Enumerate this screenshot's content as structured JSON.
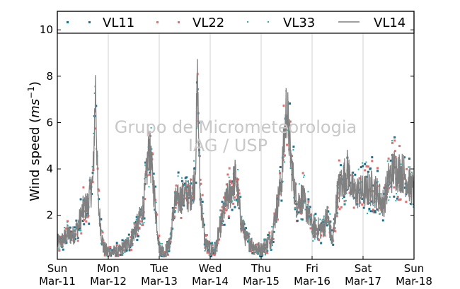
{
  "chart_data": {
    "type": "line",
    "ylabel_main": "Wind speed (",
    "ylabel_unit_base": "ms",
    "ylabel_unit_exp": "−1",
    "ylabel_close": ")",
    "ylim": [
      0.1,
      10.8
    ],
    "yticks": [
      2,
      4,
      6,
      8,
      10
    ],
    "xlim": [
      0,
      7
    ],
    "xtick_labels": [
      {
        "day": "Sun",
        "date": "Mar-11"
      },
      {
        "day": "Mon",
        "date": "Mar-12"
      },
      {
        "day": "Tue",
        "date": "Mar-13"
      },
      {
        "day": "Wed",
        "date": "Mar-14"
      },
      {
        "day": "Thu",
        "date": "Mar-15"
      },
      {
        "day": "Fri",
        "date": "Mar-16"
      },
      {
        "day": "Sat",
        "date": "Mar-17"
      },
      {
        "day": "Sun",
        "date": "Mar-18"
      }
    ],
    "grid": "vertical",
    "legend_position": "top",
    "watermark": [
      "Grupo de Micrometeorologia",
      "IAG / USP"
    ],
    "series": [
      {
        "name": "VL11",
        "style": "dots",
        "color": "#1f6f8b"
      },
      {
        "name": "VL22",
        "style": "dots",
        "color": "#e07070"
      },
      {
        "name": "VL33",
        "style": "dots",
        "color": "#20b2aa"
      },
      {
        "name": "VL14",
        "style": "line",
        "color": "#808080"
      }
    ],
    "profile_days": [
      0,
      0.1,
      0.2,
      0.3,
      0.4,
      0.5,
      0.6,
      0.7,
      0.75,
      0.8,
      0.9,
      1.0,
      1.2,
      1.4,
      1.6,
      1.7,
      1.8,
      1.9,
      2.0,
      2.1,
      2.2,
      2.3,
      2.4,
      2.5,
      2.6,
      2.7,
      2.75,
      2.8,
      2.9,
      3.0,
      3.1,
      3.2,
      3.3,
      3.4,
      3.5,
      3.6,
      3.7,
      3.8,
      3.9,
      4.0,
      4.2,
      4.4,
      4.5,
      4.6,
      4.7,
      4.8,
      4.9,
      5.0,
      5.2,
      5.3,
      5.4,
      5.5,
      5.6,
      5.7,
      5.8,
      6.0,
      6.2,
      6.4,
      6.5,
      6.6,
      6.8,
      7.0
    ],
    "profile_speed": [
      0.8,
      0.9,
      1.2,
      1.1,
      1.5,
      2.2,
      2.5,
      3.5,
      7.6,
      2.5,
      0.6,
      0.4,
      0.4,
      0.8,
      1.7,
      2.5,
      5.0,
      3.0,
      0.6,
      0.4,
      0.7,
      2.5,
      2.7,
      2.9,
      2.8,
      3.5,
      7.7,
      3.0,
      0.8,
      0.5,
      0.5,
      1.5,
      2.5,
      3.0,
      3.7,
      1.8,
      1.0,
      0.8,
      0.6,
      0.5,
      1.0,
      3.5,
      6.8,
      4.0,
      2.5,
      2.8,
      2.2,
      1.5,
      1.4,
      2.0,
      0.8,
      3.0,
      3.5,
      4.0,
      3.0,
      3.0,
      3.2,
      2.5,
      3.5,
      4.0,
      3.8,
      3.0
    ]
  }
}
